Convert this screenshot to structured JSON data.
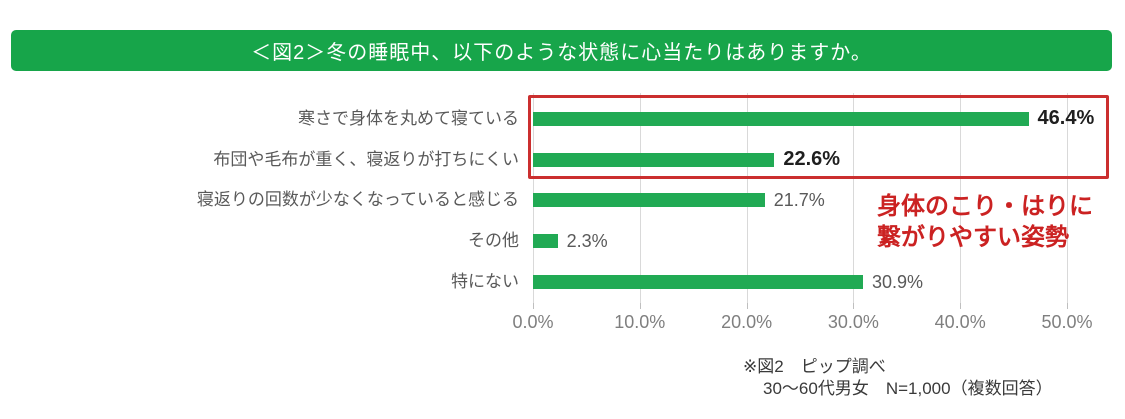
{
  "header": {
    "title": "＜図2＞冬の睡眠中、以下のような状態に心当たりはありますか。"
  },
  "chart_data": {
    "type": "bar",
    "orientation": "horizontal",
    "title": "＜図2＞冬の睡眠中、以下のような状態に心当たりはありますか。",
    "categories": [
      "寒さで身体を丸めて寝ている",
      "布団や毛布が重く、寝返りが打ちにくい",
      "寝返りの回数が少なくなっていると感じる",
      "その他",
      "特にない"
    ],
    "values": [
      46.4,
      22.6,
      21.7,
      2.3,
      30.9
    ],
    "value_labels": [
      "46.4%",
      "22.6%",
      "21.7%",
      "2.3%",
      "30.9%"
    ],
    "emphasized_rows": [
      0,
      1
    ],
    "x_tick_labels": [
      "0.0%",
      "10.0%",
      "20.0%",
      "30.0%",
      "40.0%",
      "50.0%"
    ],
    "xlim": [
      0,
      50
    ],
    "grid": true,
    "legend": "none"
  },
  "annotation": {
    "line1": "身体のこり・はりに",
    "line2": "繋がりやすい姿勢"
  },
  "footer": {
    "line1": "※図2　ピップ調べ",
    "line2": "30〜60代男女　N=1,000（複数回答）"
  },
  "colors": {
    "banner_green": "#17a54a",
    "bar_green": "#21aa54",
    "highlight_red": "#cb2f2f",
    "annotation_red": "#cb2222"
  }
}
